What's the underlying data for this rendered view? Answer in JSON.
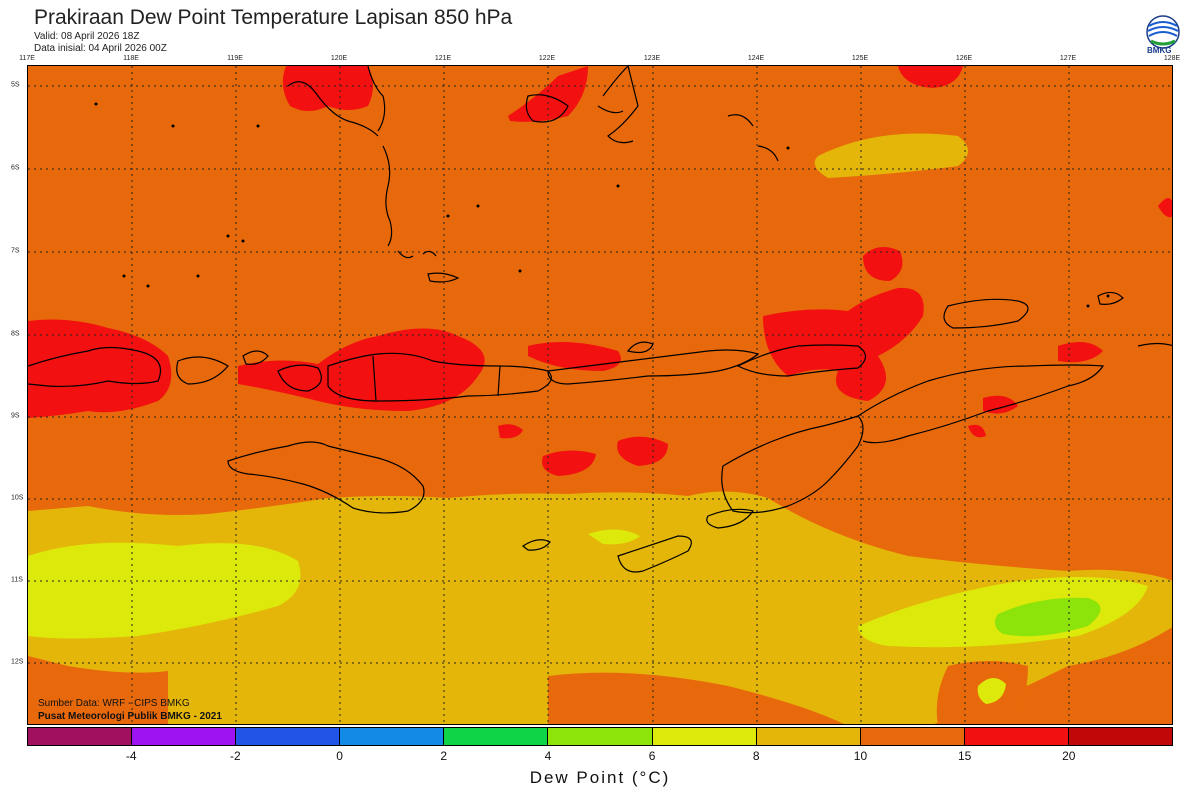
{
  "header": {
    "title": "Prakiraan Dew Point Temperature Lapisan 850 hPa",
    "valid": "Valid: 08 April 2026 18Z",
    "init": "Data inisial: 04 April 2026 00Z"
  },
  "logo": {
    "text": "BMKG",
    "icon": "bmkg-logo-icon"
  },
  "map": {
    "lon_labels": [
      "117E",
      "118E",
      "119E",
      "120E",
      "121E",
      "122E",
      "123E",
      "124E",
      "125E",
      "126E",
      "127E",
      "128E"
    ],
    "lat_labels": [
      "5S",
      "6S",
      "7S",
      "8S",
      "9S",
      "10S",
      "11S",
      "12S"
    ],
    "credit_source": "Sumber Data: WRF - CIPS BMKG",
    "credit_publisher": "Pusat Meteorologi Publik BMKG - 2021"
  },
  "colorbar": {
    "colors": [
      "#a0105e",
      "#9e13f2",
      "#2354e8",
      "#118be6",
      "#10d447",
      "#8ce40a",
      "#dde90a",
      "#e4b60a",
      "#e8690b",
      "#f21010",
      "#c10707"
    ],
    "ticks": [
      "-4",
      "-2",
      "0",
      "2",
      "4",
      "6",
      "8",
      "10",
      "15",
      "20"
    ],
    "title": "Dew Point (°C)"
  }
}
